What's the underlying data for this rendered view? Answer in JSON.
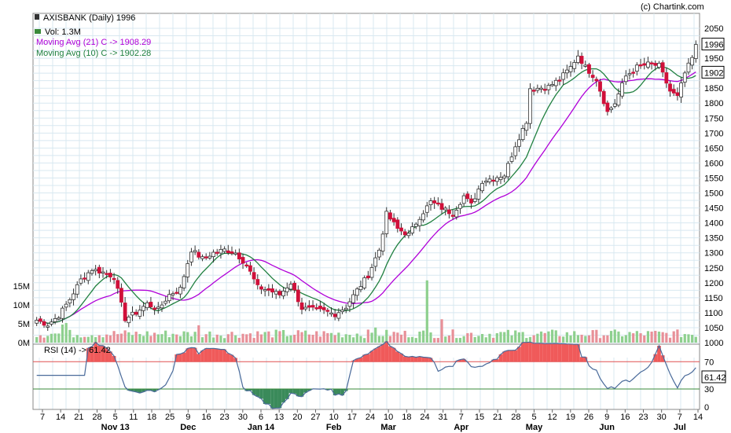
{
  "header": {
    "symbol_line": "AXISBANK (Daily) 1996",
    "vol_line": "Vol: 1.3M",
    "ma21_line": "Moving Avg (21) C -> 1908.29",
    "ma10_line": "Moving Avg (10) C -> 1902.28",
    "copyright": "(c) Chartink.com",
    "rsi_line": "RSI (14) -> 61.42"
  },
  "colors": {
    "up": "#ffffff",
    "down": "#d0103a",
    "ma21": "#b000d8",
    "ma10": "#208040",
    "vol_up": "#8ed08e",
    "vol_down": "#e89098",
    "rsi_line": "#4a6a9a",
    "rsi_over": "#f05a5a",
    "rsi_under": "#3a8a5a",
    "grid": "#d8e8f0"
  },
  "chart_data": {
    "type": "candlestick",
    "title": "AXISBANK (Daily) 1996",
    "price_axis": {
      "min": 1000,
      "max": 2050,
      "ticks": [
        1000,
        1050,
        1100,
        1150,
        1200,
        1250,
        1300,
        1350,
        1400,
        1450,
        1500,
        1550,
        1600,
        1650,
        1700,
        1750,
        1800,
        1850,
        1900,
        1950,
        2000,
        2050
      ]
    },
    "volume_axis": {
      "ticks": [
        "0M",
        "5M",
        "10M",
        "15M"
      ],
      "tick_values": [
        0,
        5,
        10,
        15
      ]
    },
    "rsi_axis": {
      "ticks": [
        0,
        30,
        70
      ],
      "over": 70,
      "under": 30
    },
    "x_ticks": [
      "7",
      "14",
      "21",
      "28",
      "5",
      "11",
      "18",
      "25",
      "9",
      "16",
      "23",
      "30",
      "6",
      "13",
      "20",
      "27",
      "10",
      "17",
      "24",
      "10",
      "18",
      "24",
      "31",
      "7",
      "15",
      "21",
      "28",
      "5",
      "12",
      "19",
      "26",
      "9",
      "16",
      "23",
      "30",
      "7",
      "14"
    ],
    "month_labels": [
      "Nov 13",
      "Dec",
      "Jan 14",
      "Feb",
      "Mar",
      "Apr",
      "May",
      "Jun",
      "Jul"
    ],
    "current_price_label": "1996",
    "current_ma_label": "1902",
    "current_rsi_label": "61.42",
    "close_anchors": [
      [
        0,
        1075
      ],
      [
        3,
        1060
      ],
      [
        6,
        1090
      ],
      [
        9,
        1145
      ],
      [
        12,
        1210
      ],
      [
        15,
        1245
      ],
      [
        18,
        1235
      ],
      [
        21,
        1220
      ],
      [
        24,
        1080
      ],
      [
        27,
        1100
      ],
      [
        30,
        1130
      ],
      [
        33,
        1110
      ],
      [
        36,
        1160
      ],
      [
        39,
        1180
      ],
      [
        42,
        1310
      ],
      [
        45,
        1280
      ],
      [
        48,
        1300
      ],
      [
        51,
        1310
      ],
      [
        54,
        1300
      ],
      [
        57,
        1260
      ],
      [
        60,
        1185
      ],
      [
        63,
        1175
      ],
      [
        66,
        1160
      ],
      [
        69,
        1200
      ],
      [
        72,
        1115
      ],
      [
        75,
        1110
      ],
      [
        78,
        1105
      ],
      [
        81,
        1095
      ],
      [
        84,
        1120
      ],
      [
        87,
        1175
      ],
      [
        90,
        1225
      ],
      [
        93,
        1310
      ],
      [
        95,
        1430
      ],
      [
        98,
        1380
      ],
      [
        101,
        1360
      ],
      [
        104,
        1420
      ],
      [
        107,
        1470
      ],
      [
        110,
        1450
      ],
      [
        113,
        1430
      ],
      [
        116,
        1490
      ],
      [
        118,
        1460
      ],
      [
        121,
        1540
      ],
      [
        124,
        1550
      ],
      [
        127,
        1560
      ],
      [
        130,
        1660
      ],
      [
        133,
        1740
      ],
      [
        134,
        1850
      ],
      [
        136,
        1850
      ],
      [
        139,
        1855
      ],
      [
        142,
        1880
      ],
      [
        145,
        1920
      ],
      [
        147,
        1960
      ],
      [
        149,
        1920
      ],
      [
        152,
        1880
      ],
      [
        155,
        1770
      ],
      [
        157,
        1800
      ],
      [
        160,
        1890
      ],
      [
        163,
        1920
      ],
      [
        166,
        1930
      ],
      [
        169,
        1925
      ],
      [
        172,
        1840
      ],
      [
        174,
        1820
      ],
      [
        176,
        1900
      ],
      [
        178,
        1950
      ],
      [
        179,
        1996
      ]
    ],
    "volume_spikes": {
      "106": 16.5,
      "110": 6.2,
      "92": 4.0,
      "7": 4.8,
      "8": 5.2,
      "44": 4.6
    }
  }
}
